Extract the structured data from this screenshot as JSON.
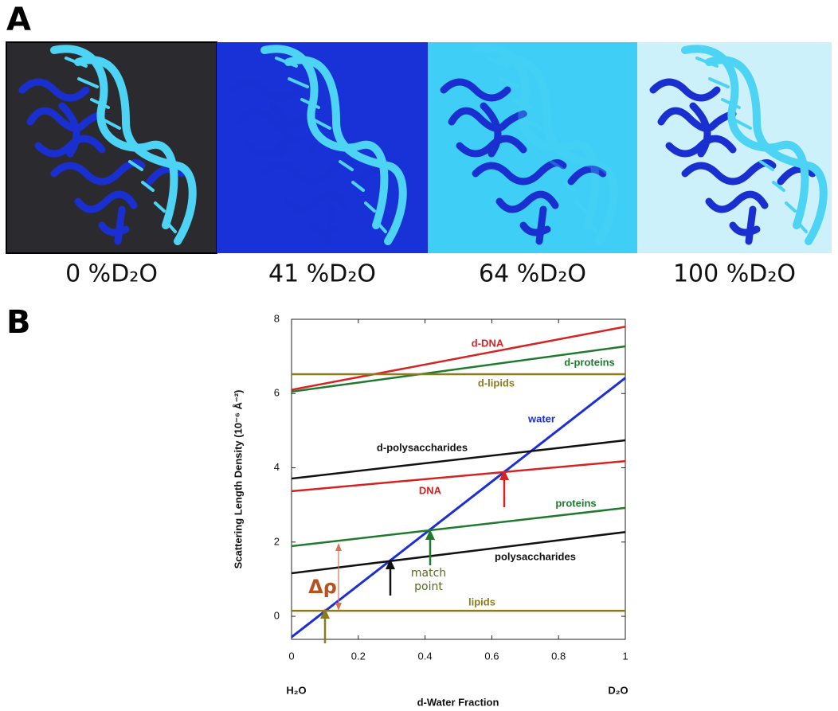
{
  "panel_a": {
    "letter": "A",
    "labels": [
      "0 %D₂O",
      "41 %D₂O",
      "64 %D₂O",
      "100 %D₂O"
    ]
  },
  "panel_b_letter": "B",
  "chart_data": {
    "type": "line",
    "x_label": "d-Water Fraction",
    "y_label": "Scattering Length Density (10⁻⁶ Å⁻²)",
    "x_end_labels": [
      "H₂O",
      "D₂O"
    ],
    "x": [
      0,
      1
    ],
    "series": [
      {
        "name": "d-DNA",
        "color": "#d42323",
        "values": [
          6.1,
          7.8
        ]
      },
      {
        "name": "d-proteins",
        "color": "#1f7a2f",
        "values": [
          6.05,
          7.27
        ]
      },
      {
        "name": "d-lipids",
        "color": "#8c7a1f",
        "values": [
          6.52,
          6.52
        ]
      },
      {
        "name": "water",
        "color": "#1b2fd4",
        "values": [
          -0.56,
          6.42
        ]
      },
      {
        "name": "d-polysaccharides",
        "color": "#111111",
        "values": [
          3.71,
          4.74
        ]
      },
      {
        "name": "DNA",
        "color": "#d42323",
        "values": [
          3.37,
          4.18
        ]
      },
      {
        "name": "proteins",
        "color": "#1f7a2f",
        "values": [
          1.89,
          2.92
        ]
      },
      {
        "name": "polysaccharides",
        "color": "#111111",
        "values": [
          1.16,
          2.27
        ]
      },
      {
        "name": "lipids",
        "color": "#8c7a1f",
        "values": [
          0.15,
          0.15
        ]
      }
    ],
    "annotations": {
      "delta_rho": "Δρ",
      "match_point": [
        "match",
        "point"
      ]
    },
    "xlim": [
      0,
      1
    ],
    "xticks": [
      0,
      0.2,
      0.4,
      0.6,
      0.8,
      1
    ],
    "ylim": [
      -0.62,
      8
    ],
    "yticks": [
      0,
      2,
      4,
      6,
      8
    ],
    "grid": false
  }
}
